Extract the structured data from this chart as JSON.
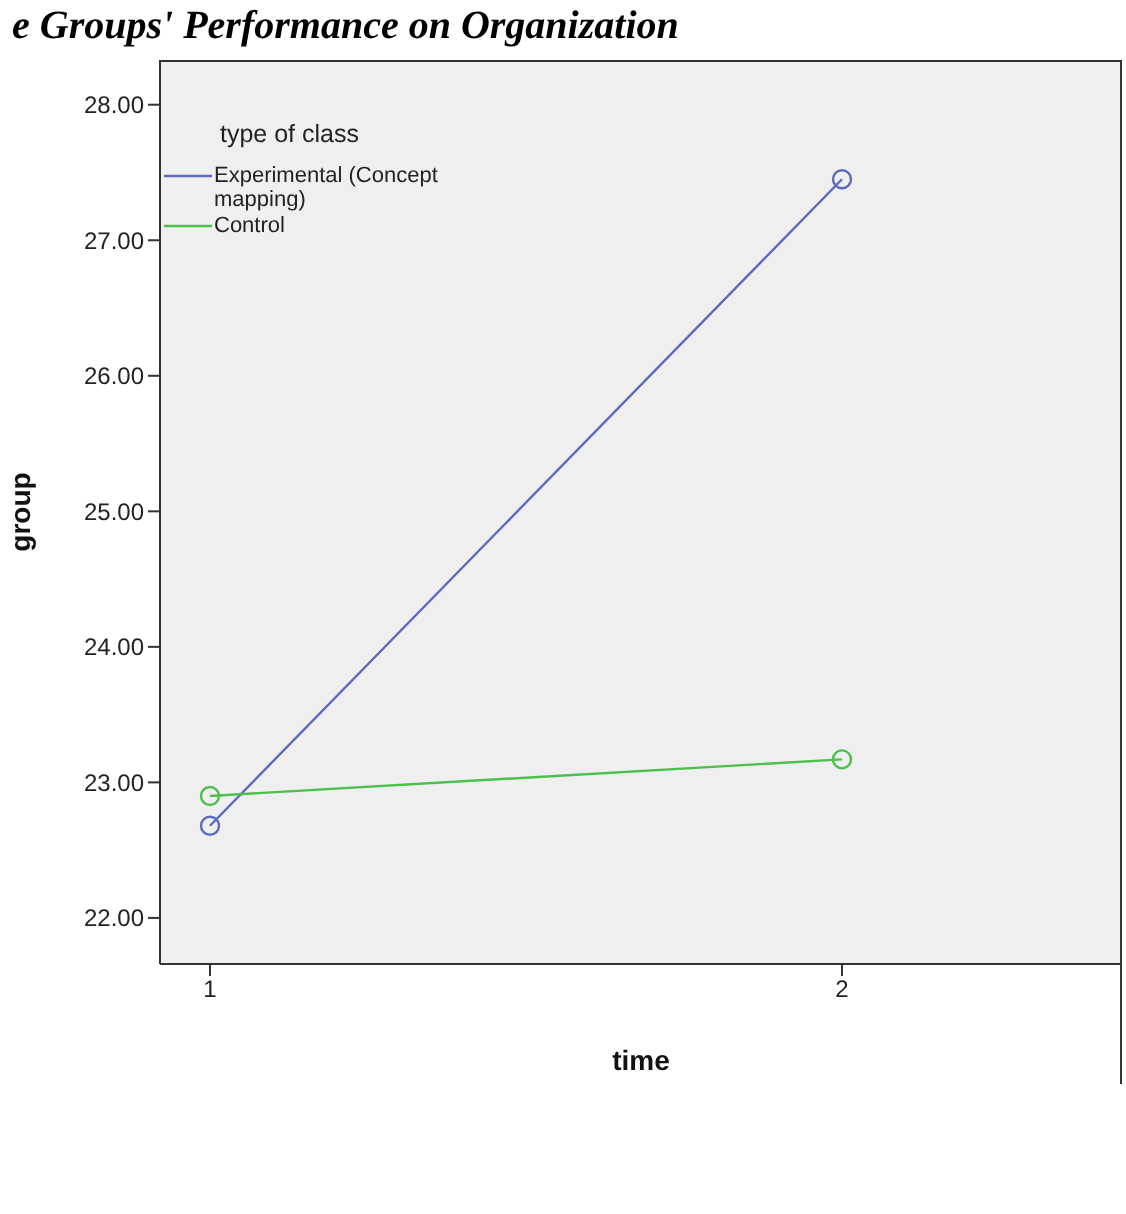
{
  "chart_data": {
    "type": "line",
    "title": "e Groups' Performance on Organization",
    "xlabel": "time",
    "ylabel": "group",
    "legend_title": "type of class",
    "categories": [
      "1",
      "2"
    ],
    "series": [
      {
        "name": "Experimental (Concept mapping)",
        "color": "#5b6bbf",
        "values": [
          22.68,
          27.45
        ]
      },
      {
        "name": "Control",
        "color": "#4cbf4c",
        "values": [
          22.9,
          23.17
        ]
      }
    ],
    "ylim": [
      21.66,
      28.33
    ],
    "yticks": [
      {
        "value": 22,
        "label": "22.00"
      },
      {
        "value": 23,
        "label": "23.00"
      },
      {
        "value": 24,
        "label": "24.00"
      },
      {
        "value": 25,
        "label": "25.00"
      },
      {
        "value": 26,
        "label": "26.00"
      },
      {
        "value": 27,
        "label": "27.00"
      },
      {
        "value": 28,
        "label": "28.00"
      }
    ],
    "grid": false,
    "legend": "top left",
    "marker": "circle",
    "line_style": "solid"
  }
}
